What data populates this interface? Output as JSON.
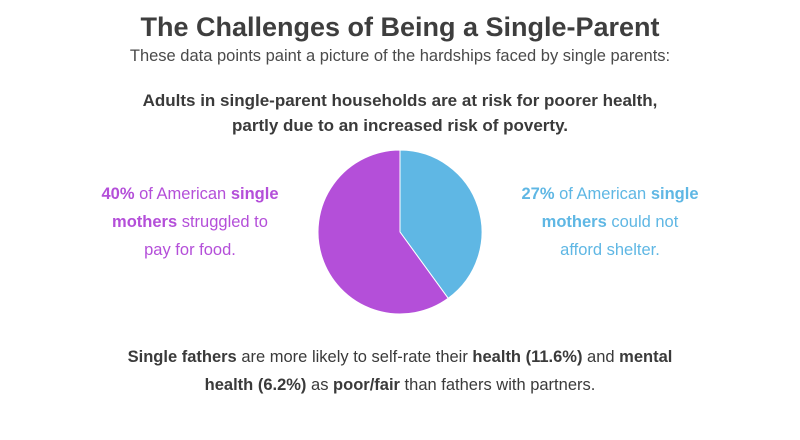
{
  "header": {
    "title": "The Challenges of Being a Single-Parent",
    "subtitle": "These data points paint a picture of the hardships faced by single parents:",
    "headline_line1": "Adults in single-parent households are at risk for poorer health,",
    "headline_line2": "partly due to an increased risk of poverty."
  },
  "stats": {
    "left": {
      "value": "40%",
      "t1": " of American ",
      "b1": "single",
      "b2": "mothers",
      "t2": " struggled to",
      "t3": "pay for food."
    },
    "right": {
      "value": "27%",
      "t1": " of American ",
      "b1": "single",
      "b2": "mothers",
      "t2": " could not",
      "t3": "afford shelter."
    }
  },
  "footer": {
    "b1": "Single fathers",
    "t1": " are more likely to self-rate their ",
    "b2": "health (11.6%)",
    "t2": " and ",
    "b3": "mental",
    "b4": "health (6.2%)",
    "t3": " as ",
    "b5": "poor/fair",
    "t4": " than fathers with partners."
  },
  "chart_data": {
    "type": "pie",
    "slices": [
      {
        "value": 40,
        "color": "#5fb7e4"
      },
      {
        "value": 60,
        "color": "#b44fd9"
      }
    ],
    "start_angle_deg": 0,
    "direction": "clockwise"
  }
}
